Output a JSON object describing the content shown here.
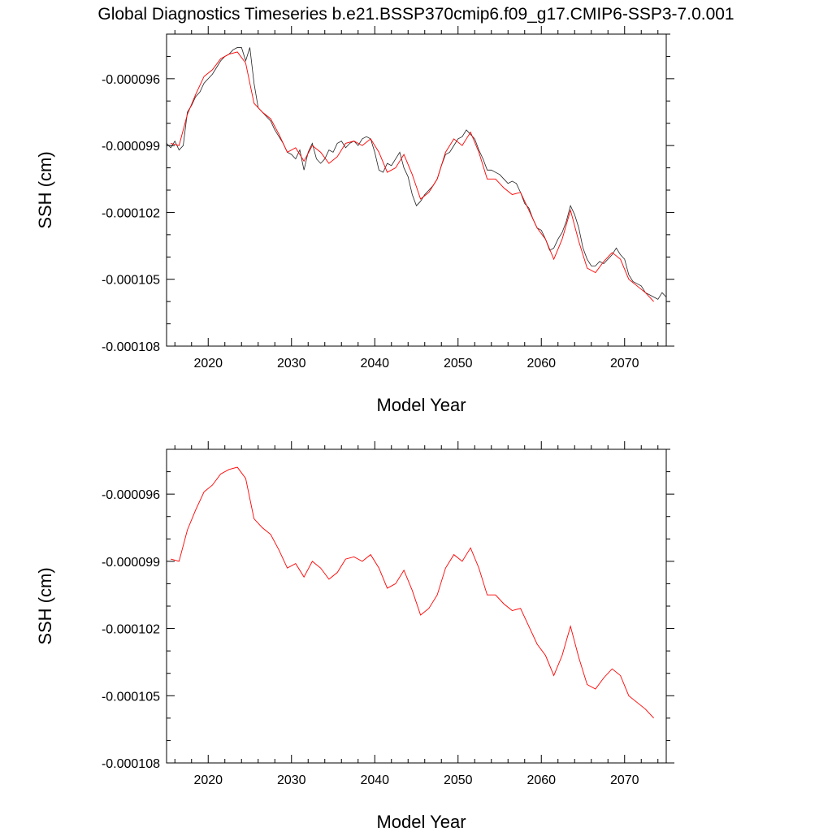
{
  "title": "Global Diagnostics Timeseries b.e21.BSSP370cmip6.f09_g17.CMIP6-SSP3-7.0.001",
  "colors": {
    "monthly": "#222222",
    "annual": "#ff0000",
    "axis": "#000000"
  },
  "chart_data": [
    {
      "type": "line",
      "xlabel": "Model Year",
      "ylabel": "SSH (cm)",
      "xlim": [
        2015,
        2075
      ],
      "ylim": [
        -0.000108,
        -9.4e-05
      ],
      "x_ticks": [
        2020,
        2030,
        2040,
        2050,
        2060,
        2070
      ],
      "x_tick_labels": [
        "2020",
        "2030",
        "2040",
        "2050",
        "2060",
        "2070"
      ],
      "y_ticks": [
        -0.000108,
        -0.000105,
        -0.000102,
        -9.9e-05,
        -9.6e-05
      ],
      "y_tick_labels": [
        "-0.000108",
        "-0.000105",
        "-0.000102",
        "-0.000099",
        "-0.000096"
      ],
      "series": [
        {
          "style": "monthly",
          "x": [
            2015.0,
            2015.5,
            2016.0,
            2016.5,
            2017.0,
            2017.5,
            2018.0,
            2018.5,
            2019.0,
            2019.5,
            2020.0,
            2020.5,
            2021.0,
            2021.5,
            2022.0,
            2022.5,
            2023.0,
            2023.5,
            2024.0,
            2024.5,
            2025.0,
            2025.5,
            2026.0,
            2026.5,
            2027.0,
            2027.5,
            2028.0,
            2028.5,
            2029.0,
            2029.5,
            2030.0,
            2030.5,
            2031.0,
            2031.5,
            2032.0,
            2032.5,
            2033.0,
            2033.5,
            2034.0,
            2034.5,
            2035.0,
            2035.5,
            2036.0,
            2036.5,
            2037.0,
            2037.5,
            2038.0,
            2038.5,
            2039.0,
            2039.5,
            2040.0,
            2040.5,
            2041.0,
            2041.5,
            2042.0,
            2042.5,
            2043.0,
            2043.5,
            2044.0,
            2044.5,
            2045.0,
            2045.5,
            2046.0,
            2046.5,
            2047.0,
            2047.5,
            2048.0,
            2048.5,
            2049.0,
            2049.5,
            2050.0,
            2050.5,
            2051.0,
            2051.5,
            2052.0,
            2052.5,
            2053.0,
            2053.5,
            2054.0,
            2054.5,
            2055.0,
            2055.5,
            2056.0,
            2056.5,
            2057.0,
            2057.5,
            2058.0,
            2058.5,
            2059.0,
            2059.5,
            2060.0,
            2060.5,
            2061.0,
            2061.5,
            2062.0,
            2062.5,
            2063.0,
            2063.5,
            2064.0,
            2064.5,
            2065.0,
            2065.5,
            2066.0,
            2066.5,
            2067.0,
            2067.5,
            2068.0,
            2068.5,
            2069.0,
            2069.5,
            2070.0,
            2070.5,
            2071.0,
            2071.5,
            2072.0,
            2072.5,
            2073.0,
            2073.5,
            2074.0,
            2074.5,
            2075.0
          ],
          "values": [
            -9.89e-05,
            -9.91e-05,
            -9.88e-05,
            -9.92e-05,
            -9.9e-05,
            -9.75e-05,
            -9.72e-05,
            -9.68e-05,
            -9.66e-05,
            -9.62e-05,
            -9.6e-05,
            -9.58e-05,
            -9.55e-05,
            -9.52e-05,
            -9.5e-05,
            -9.49e-05,
            -9.47e-05,
            -9.46e-05,
            -9.46e-05,
            -9.52e-05,
            -9.46e-05,
            -9.62e-05,
            -9.73e-05,
            -9.75e-05,
            -9.77e-05,
            -9.79e-05,
            -9.83e-05,
            -9.86e-05,
            -9.89e-05,
            -9.93e-05,
            -9.94e-05,
            -9.96e-05,
            -9.92e-05,
            -0.0001001,
            -9.93e-05,
            -9.89e-05,
            -9.96e-05,
            -9.98e-05,
            -9.96e-05,
            -9.92e-05,
            -9.93e-05,
            -9.89e-05,
            -9.88e-05,
            -9.91e-05,
            -9.89e-05,
            -9.88e-05,
            -9.9e-05,
            -9.87e-05,
            -9.86e-05,
            -9.87e-05,
            -9.93e-05,
            -0.0001001,
            -0.0001002,
            -9.98e-05,
            -9.99e-05,
            -9.96e-05,
            -9.93e-05,
            -0.0001,
            -0.0001004,
            -0.0001012,
            -0.0001017,
            -0.0001015,
            -0.0001012,
            -0.000101,
            -0.0001008,
            -0.0001005,
            -9.99e-05,
            -9.94e-05,
            -9.93e-05,
            -9.9e-05,
            -9.87e-05,
            -9.86e-05,
            -9.83e-05,
            -9.85e-05,
            -9.87e-05,
            -9.92e-05,
            -9.96e-05,
            -0.0001001,
            -0.0001001,
            -0.0001002,
            -0.0001003,
            -0.0001005,
            -0.0001007,
            -0.0001006,
            -0.0001007,
            -0.0001011,
            -0.0001016,
            -0.0001018,
            -0.0001023,
            -0.0001027,
            -0.0001028,
            -0.0001032,
            -0.0001037,
            -0.0001036,
            -0.0001032,
            -0.0001029,
            -0.0001024,
            -0.0001017,
            -0.0001021,
            -0.0001027,
            -0.0001036,
            -0.0001041,
            -0.0001044,
            -0.0001044,
            -0.0001042,
            -0.0001043,
            -0.0001041,
            -0.0001039,
            -0.0001036,
            -0.0001039,
            -0.0001041,
            -0.0001048,
            -0.0001051,
            -0.0001052,
            -0.0001053,
            -0.0001056,
            -0.0001057,
            -0.0001058,
            -0.0001059,
            -0.0001056,
            -0.0001058
          ]
        },
        {
          "style": "annual",
          "x": [
            2015.5,
            2016.5,
            2017.5,
            2018.5,
            2019.5,
            2020.5,
            2021.5,
            2022.5,
            2023.5,
            2024.5,
            2025.5,
            2026.5,
            2027.5,
            2028.5,
            2029.5,
            2030.5,
            2031.5,
            2032.5,
            2033.5,
            2034.5,
            2035.5,
            2036.5,
            2037.5,
            2038.5,
            2039.5,
            2040.5,
            2041.5,
            2042.5,
            2043.5,
            2044.5,
            2045.5,
            2046.5,
            2047.5,
            2048.5,
            2049.5,
            2050.5,
            2051.5,
            2052.5,
            2053.5,
            2054.5,
            2055.5,
            2056.5,
            2057.5,
            2058.5,
            2059.5,
            2060.5,
            2061.5,
            2062.5,
            2063.5,
            2064.5,
            2065.5,
            2066.5,
            2067.5,
            2068.5,
            2069.5,
            2070.5,
            2071.5,
            2072.5,
            2073.5
          ],
          "values": [
            -9.89e-05,
            -9.9e-05,
            -9.76e-05,
            -9.67e-05,
            -9.59e-05,
            -9.56e-05,
            -9.51e-05,
            -9.49e-05,
            -9.48e-05,
            -9.53e-05,
            -9.71e-05,
            -9.75e-05,
            -9.78e-05,
            -9.85e-05,
            -9.93e-05,
            -9.91e-05,
            -9.97e-05,
            -9.9e-05,
            -9.93e-05,
            -9.98e-05,
            -9.95e-05,
            -9.89e-05,
            -9.88e-05,
            -9.9e-05,
            -9.87e-05,
            -9.93e-05,
            -0.0001002,
            -0.0001,
            -9.94e-05,
            -0.0001003,
            -0.0001014,
            -0.0001011,
            -0.0001005,
            -9.93e-05,
            -9.87e-05,
            -9.9e-05,
            -9.84e-05,
            -9.93e-05,
            -0.0001005,
            -0.0001005,
            -0.0001009,
            -0.0001012,
            -0.0001011,
            -0.0001019,
            -0.0001027,
            -0.0001032,
            -0.0001041,
            -0.0001032,
            -0.0001019,
            -0.0001033,
            -0.0001045,
            -0.0001047,
            -0.0001042,
            -0.0001038,
            -0.0001041,
            -0.000105,
            -0.0001053,
            -0.0001056,
            -0.000106
          ]
        }
      ]
    },
    {
      "type": "line",
      "xlabel": "Model Year",
      "ylabel": "SSH (cm)",
      "xlim": [
        2015,
        2075
      ],
      "ylim": [
        -0.000108,
        -9.4e-05
      ],
      "x_ticks": [
        2020,
        2030,
        2040,
        2050,
        2060,
        2070
      ],
      "x_tick_labels": [
        "2020",
        "2030",
        "2040",
        "2050",
        "2060",
        "2070"
      ],
      "y_ticks": [
        -0.000108,
        -0.000105,
        -0.000102,
        -9.9e-05,
        -9.6e-05
      ],
      "y_tick_labels": [
        "-0.000108",
        "-0.000105",
        "-0.000102",
        "-0.000099",
        "-0.000096"
      ],
      "series": [
        {
          "style": "annual",
          "x": [
            2015.5,
            2016.5,
            2017.5,
            2018.5,
            2019.5,
            2020.5,
            2021.5,
            2022.5,
            2023.5,
            2024.5,
            2025.5,
            2026.5,
            2027.5,
            2028.5,
            2029.5,
            2030.5,
            2031.5,
            2032.5,
            2033.5,
            2034.5,
            2035.5,
            2036.5,
            2037.5,
            2038.5,
            2039.5,
            2040.5,
            2041.5,
            2042.5,
            2043.5,
            2044.5,
            2045.5,
            2046.5,
            2047.5,
            2048.5,
            2049.5,
            2050.5,
            2051.5,
            2052.5,
            2053.5,
            2054.5,
            2055.5,
            2056.5,
            2057.5,
            2058.5,
            2059.5,
            2060.5,
            2061.5,
            2062.5,
            2063.5,
            2064.5,
            2065.5,
            2066.5,
            2067.5,
            2068.5,
            2069.5,
            2070.5,
            2071.5,
            2072.5,
            2073.5
          ],
          "values": [
            -9.89e-05,
            -9.9e-05,
            -9.76e-05,
            -9.67e-05,
            -9.59e-05,
            -9.56e-05,
            -9.51e-05,
            -9.49e-05,
            -9.48e-05,
            -9.53e-05,
            -9.71e-05,
            -9.75e-05,
            -9.78e-05,
            -9.85e-05,
            -9.93e-05,
            -9.91e-05,
            -9.97e-05,
            -9.9e-05,
            -9.93e-05,
            -9.98e-05,
            -9.95e-05,
            -9.89e-05,
            -9.88e-05,
            -9.9e-05,
            -9.87e-05,
            -9.93e-05,
            -0.0001002,
            -0.0001,
            -9.94e-05,
            -0.0001003,
            -0.0001014,
            -0.0001011,
            -0.0001005,
            -9.93e-05,
            -9.87e-05,
            -9.9e-05,
            -9.84e-05,
            -9.93e-05,
            -0.0001005,
            -0.0001005,
            -0.0001009,
            -0.0001012,
            -0.0001011,
            -0.0001019,
            -0.0001027,
            -0.0001032,
            -0.0001041,
            -0.0001032,
            -0.0001019,
            -0.0001033,
            -0.0001045,
            -0.0001047,
            -0.0001042,
            -0.0001038,
            -0.0001041,
            -0.000105,
            -0.0001053,
            -0.0001056,
            -0.000106
          ]
        }
      ]
    }
  ]
}
